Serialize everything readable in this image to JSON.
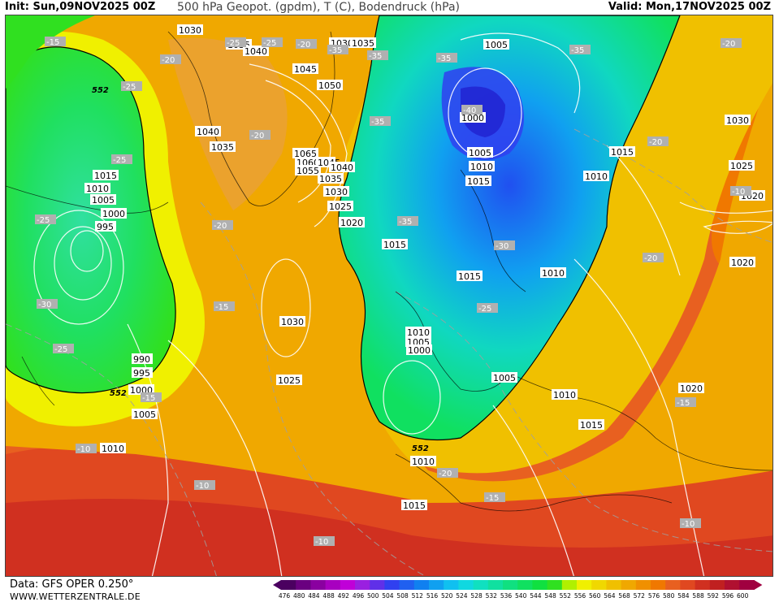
{
  "header": {
    "init": "Init: Sun,09NOV2025 00Z",
    "title": "500 hPa Geopot. (gpdm), T (C), Bodendruck (hPa)",
    "valid": "Valid: Mon,17NOV2025 00Z"
  },
  "footer": {
    "data_source": "Data: GFS OPER 0.250°",
    "website": "WWW.WETTERZENTRALE.DE"
  },
  "legend": {
    "values": [
      "476",
      "480",
      "484",
      "488",
      "492",
      "496",
      "500",
      "504",
      "508",
      "512",
      "516",
      "520",
      "524",
      "528",
      "532",
      "536",
      "540",
      "544",
      "548",
      "552",
      "556",
      "560",
      "564",
      "568",
      "572",
      "576",
      "580",
      "584",
      "588",
      "592",
      "596",
      "600"
    ],
    "colors": [
      "#4b0060",
      "#6a0080",
      "#8a00a0",
      "#a800c0",
      "#c000d8",
      "#9a20e0",
      "#6030e8",
      "#3040f0",
      "#2060f0",
      "#1080f0",
      "#10a0f0",
      "#10c0f0",
      "#10d8e0",
      "#10e0c0",
      "#10e0a0",
      "#10e080",
      "#10e060",
      "#10e040",
      "#30e020",
      "#b0f000",
      "#f0f000",
      "#f0d800",
      "#f0c000",
      "#f0a800",
      "#f09000",
      "#f07800",
      "#e86020",
      "#e04820",
      "#d03020",
      "#c02020",
      "#b01030",
      "#a00040"
    ],
    "colors_meaning": "500 hPa geopotential height (gpdm)"
  },
  "pressure_labels": [
    "1030",
    "1035",
    "1040",
    "1030",
    "1035",
    "1045",
    "1050",
    "1005",
    "1000",
    "1005",
    "1010",
    "1015",
    "1040",
    "1035",
    "1065",
    "1060",
    "1055",
    "1045",
    "1040",
    "1035",
    "1030",
    "1025",
    "1020",
    "1015",
    "1010",
    "1005",
    "1000",
    "995",
    "990",
    "995",
    "1000",
    "1005",
    "1010",
    "1030",
    "1025",
    "1015",
    "1010",
    "1005",
    "1000",
    "1005",
    "1010",
    "1015",
    "1010",
    "1015",
    "1020",
    "1030",
    "1025",
    "1020",
    "1020",
    "1015",
    "1010",
    "1010",
    "1015"
  ],
  "temperature_labels": [
    "-15",
    "-20",
    "-25",
    "-25",
    "-25",
    "-35",
    "-35",
    "-35",
    "-30",
    "-20",
    "-25",
    "-20",
    "-20",
    "-30",
    "-25",
    "-15",
    "-15",
    "-35",
    "-35",
    "-25",
    "-25",
    "-40",
    "-35",
    "-20",
    "-20",
    "-20",
    "-15",
    "-10",
    "-10",
    "-10",
    "-15",
    "-10",
    "-20",
    "-10"
  ],
  "geopotential_labels": [
    "552",
    "552",
    "552"
  ]
}
